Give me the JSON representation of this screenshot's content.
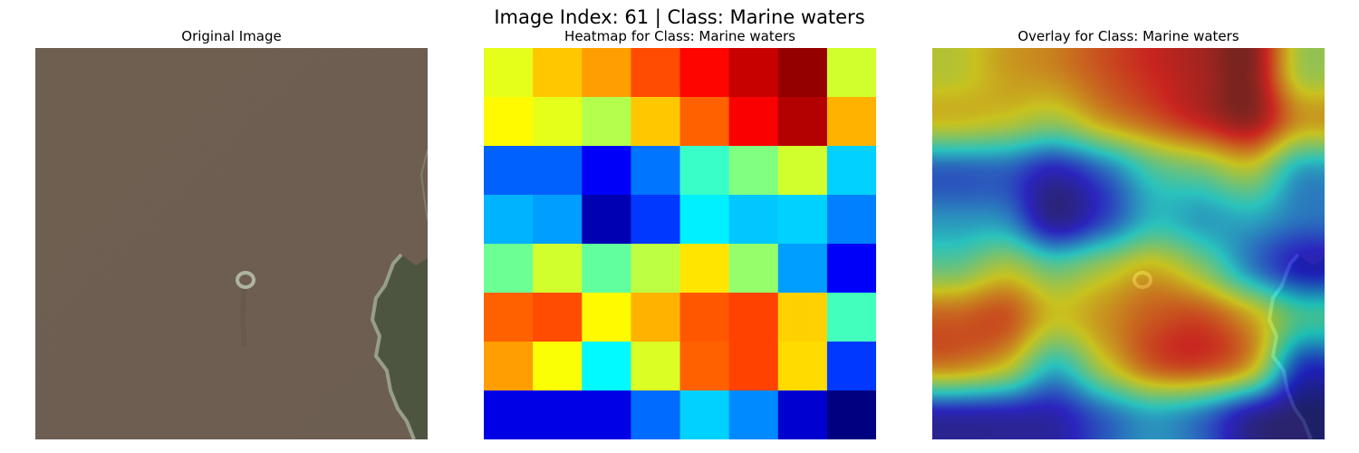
{
  "figure": {
    "suptitle": "Image Index: 61 | Class: Marine waters"
  },
  "panels": {
    "original": {
      "title": "Original Image"
    },
    "heatmap": {
      "title": "Heatmap for Class: Marine waters"
    },
    "overlay": {
      "title": "Overlay for Class: Marine waters"
    }
  },
  "chart_data": {
    "type": "heatmap",
    "colormap": "jet",
    "rows": 8,
    "cols": 8,
    "values": [
      [
        0.6,
        0.68,
        0.72,
        0.8,
        0.87,
        0.93,
        0.98,
        0.58
      ],
      [
        0.63,
        0.6,
        0.55,
        0.68,
        0.78,
        0.88,
        0.95,
        0.7
      ],
      [
        0.22,
        0.22,
        0.12,
        0.24,
        0.43,
        0.5,
        0.58,
        0.33
      ],
      [
        0.3,
        0.28,
        0.05,
        0.18,
        0.36,
        0.32,
        0.33,
        0.25
      ],
      [
        0.48,
        0.58,
        0.47,
        0.56,
        0.65,
        0.52,
        0.28,
        0.12
      ],
      [
        0.78,
        0.8,
        0.63,
        0.7,
        0.79,
        0.81,
        0.67,
        0.44
      ],
      [
        0.72,
        0.62,
        0.37,
        0.59,
        0.78,
        0.81,
        0.66,
        0.18
      ],
      [
        0.1,
        0.1,
        0.1,
        0.23,
        0.33,
        0.26,
        0.08,
        0.0
      ]
    ],
    "xticks": [],
    "yticks": []
  },
  "colors": {
    "water": "#705f52",
    "land": "#4f5640",
    "foam": "#aeb9a6"
  }
}
